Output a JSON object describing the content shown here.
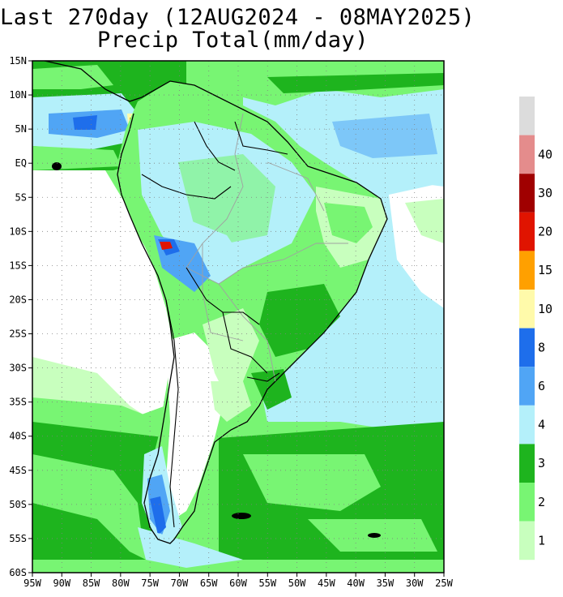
{
  "title": {
    "line1": "Last 270day (12AUG2024 - 08MAY2025)",
    "line2": "Precip Total(mm/day)"
  },
  "map": {
    "lat_labels": [
      "15N",
      "10N",
      "5N",
      "EQ",
      "5S",
      "10S",
      "15S",
      "20S",
      "25S",
      "30S",
      "35S",
      "40S",
      "45S",
      "50S",
      "55S",
      "60S"
    ],
    "lon_labels": [
      "95W",
      "90W",
      "85W",
      "80W",
      "75W",
      "70W",
      "65W",
      "60W",
      "55W",
      "50W",
      "45W",
      "40W",
      "35W",
      "30W",
      "25W"
    ],
    "lat_range": [
      -60,
      15
    ],
    "lon_range": [
      -95,
      -25
    ],
    "grid": "dotted"
  },
  "colorbar": {
    "levels": [
      {
        "color": "#dcdcdc",
        "label": ""
      },
      {
        "color": "#e48c8c",
        "label": "40"
      },
      {
        "color": "#a00000",
        "label": "30"
      },
      {
        "color": "#e01400",
        "label": "20"
      },
      {
        "color": "#ffa000",
        "label": "15"
      },
      {
        "color": "#fffaaa",
        "label": "10"
      },
      {
        "color": "#1e6eeb",
        "label": "8"
      },
      {
        "color": "#50a5f5",
        "label": "6"
      },
      {
        "color": "#b4f0fa",
        "label": "4"
      },
      {
        "color": "#1eb41e",
        "label": "3"
      },
      {
        "color": "#78f573",
        "label": "2"
      },
      {
        "color": "#c8ffbe",
        "label": "1"
      }
    ]
  },
  "colors": {
    "dry": "#ffffff",
    "light_green": "#c8ffbe",
    "green": "#78f573",
    "dark_green": "#1eb41e",
    "cyan": "#b4f0fa",
    "light_blue": "#50a5f5",
    "blue": "#1e6eeb",
    "yellow": "#fffaaa",
    "orange": "#ffa000",
    "red": "#e01400",
    "coast": "#000000",
    "borders": "#a0a0a0"
  }
}
